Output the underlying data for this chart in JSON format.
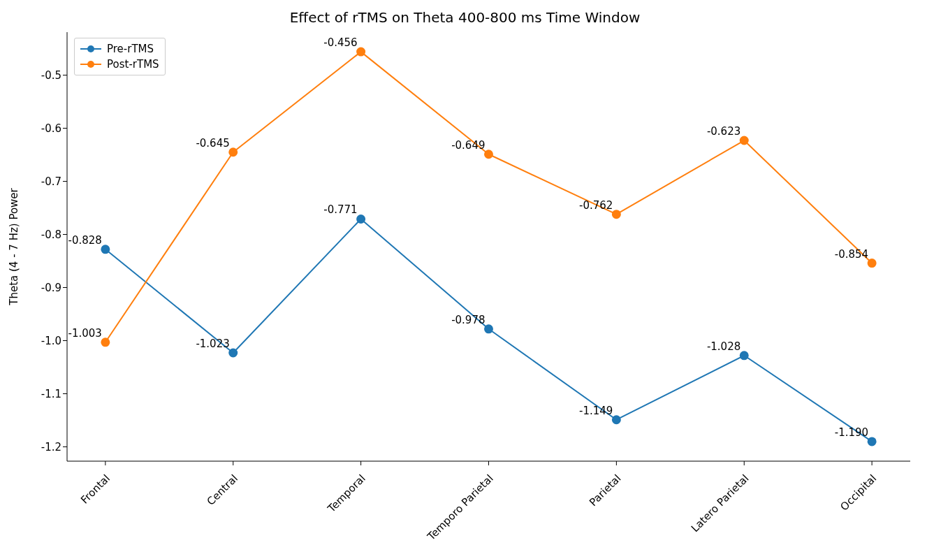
{
  "chart_data": {
    "type": "line",
    "title": "Effect of rTMS on Theta 400-800 ms Time Window",
    "ylabel": "Theta (4 - 7 Hz) Power",
    "categories": [
      "Frontal",
      "Central",
      "Temporal",
      "Temporo Parietal",
      "Parietal",
      "Latero Parietal",
      "Occipital"
    ],
    "series": [
      {
        "name": "Pre-rTMS",
        "color": "#1f77b4",
        "values": [
          -0.828,
          -1.023,
          -0.771,
          -0.978,
          -1.149,
          -1.028,
          -1.19
        ],
        "value_labels": [
          "-0.828",
          "-1.023",
          "-0.771",
          "-0.978",
          "-1.149",
          "-1.028",
          "-1.190"
        ]
      },
      {
        "name": "Post-rTMS",
        "color": "#ff7f0e",
        "values": [
          -1.003,
          -0.645,
          -0.456,
          -0.649,
          -0.762,
          -0.623,
          -0.854
        ],
        "value_labels": [
          "-1.003",
          "-0.645",
          "-0.456",
          "-0.649",
          "-0.762",
          "-0.623",
          "-0.854"
        ]
      }
    ],
    "ylim": [
      -1.227,
      -0.419
    ],
    "yticks": [
      -1.2,
      -1.1,
      {
        "value": -1.0,
        "label": "-1.0"
      },
      -0.9,
      -0.8,
      -0.7,
      -0.6,
      -0.5
    ],
    "grid": false,
    "legend": "top left",
    "marker": "circle",
    "line_style": "solid"
  }
}
